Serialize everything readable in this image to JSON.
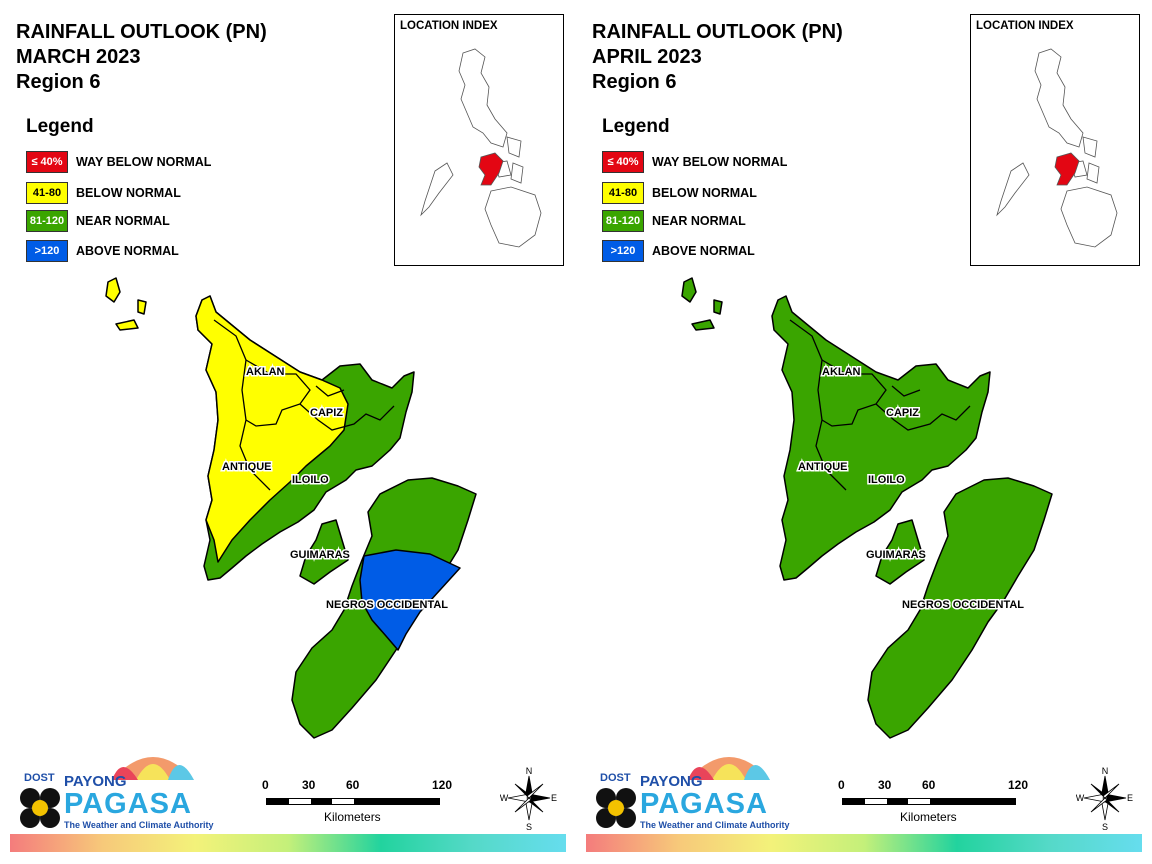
{
  "legend": {
    "title": "Legend",
    "items": [
      {
        "code": "≤ 40%",
        "label": "WAY BELOW NORMAL",
        "color": "#e30613"
      },
      {
        "code": "41-80",
        "label": "BELOW NORMAL",
        "color": "#ffff00"
      },
      {
        "code": "81-120",
        "label": "NEAR NORMAL",
        "color": "#3aa500"
      },
      {
        "code": ">120",
        "label": "ABOVE NORMAL",
        "color": "#005ce6"
      }
    ]
  },
  "location_index_title": "LOCATION INDEX",
  "scale": {
    "ticks": [
      "0",
      "30",
      "60",
      "120"
    ],
    "unit": "Kilometers"
  },
  "compass": {
    "n": "N",
    "s": "S",
    "e": "E",
    "w": "W"
  },
  "logo": {
    "dost": "DOST",
    "payong": "PAYONG",
    "pagasa": "PAGASA",
    "tagline": "The Weather and Climate Authority"
  },
  "provinces": [
    "AKLAN",
    "CAPIZ",
    "ANTIQUE",
    "ILOILO",
    "GUIMARAS",
    "NEGROS OCCIDENTAL"
  ],
  "panels": [
    {
      "title": [
        "RAINFALL OUTLOOK (PN)",
        "MARCH 2023",
        "Region 6"
      ],
      "categories": {
        "AKLAN": "BELOW NORMAL",
        "CAPIZ": "BELOW NORMAL",
        "ANTIQUE": "BELOW NORMAL",
        "ILOILO": "NEAR NORMAL",
        "GUIMARAS": "NEAR NORMAL",
        "NEGROS OCCIDENTAL": "NEAR NORMAL / ABOVE NORMAL"
      }
    },
    {
      "title": [
        "RAINFALL OUTLOOK (PN)",
        "APRIL 2023",
        "Region 6"
      ],
      "categories": {
        "AKLAN": "NEAR NORMAL",
        "CAPIZ": "NEAR NORMAL",
        "ANTIQUE": "NEAR NORMAL",
        "ILOILO": "NEAR NORMAL",
        "GUIMARAS": "NEAR NORMAL",
        "NEGROS OCCIDENTAL": "NEAR NORMAL"
      }
    }
  ]
}
